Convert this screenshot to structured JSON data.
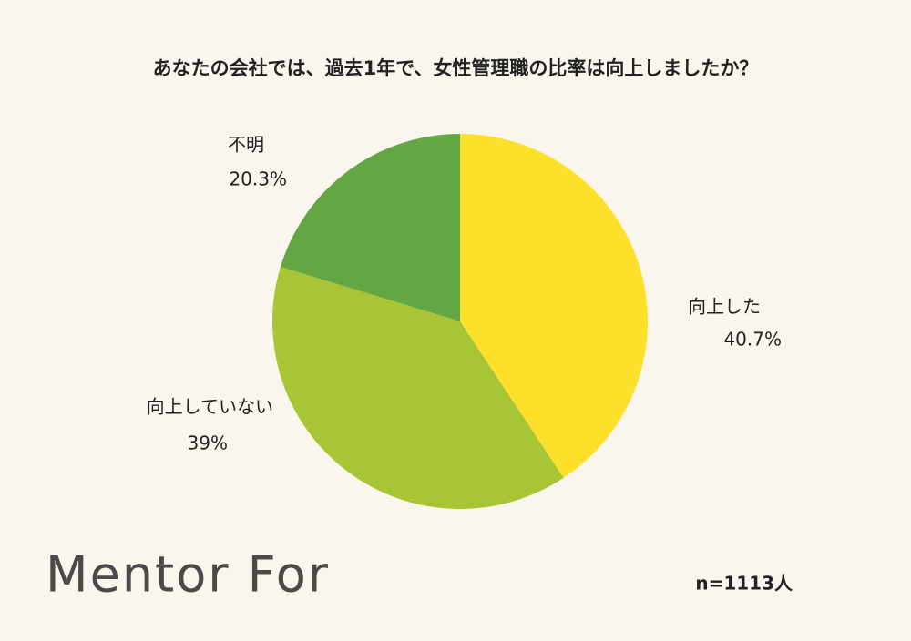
{
  "chart_data": {
    "type": "pie",
    "title": "あなたの会社では、過去1年で、女性管理職の比率は向上しましたか？",
    "categories": [
      "向上した",
      "向上していない",
      "不明"
    ],
    "values": [
      40.7,
      39,
      20.3
    ],
    "value_labels": [
      "40.7%",
      "39%",
      "20.3%"
    ],
    "colors": [
      "#fde02a",
      "#a8c536",
      "#62a744"
    ],
    "note": "n=1113人"
  },
  "logo": "Mentor For"
}
